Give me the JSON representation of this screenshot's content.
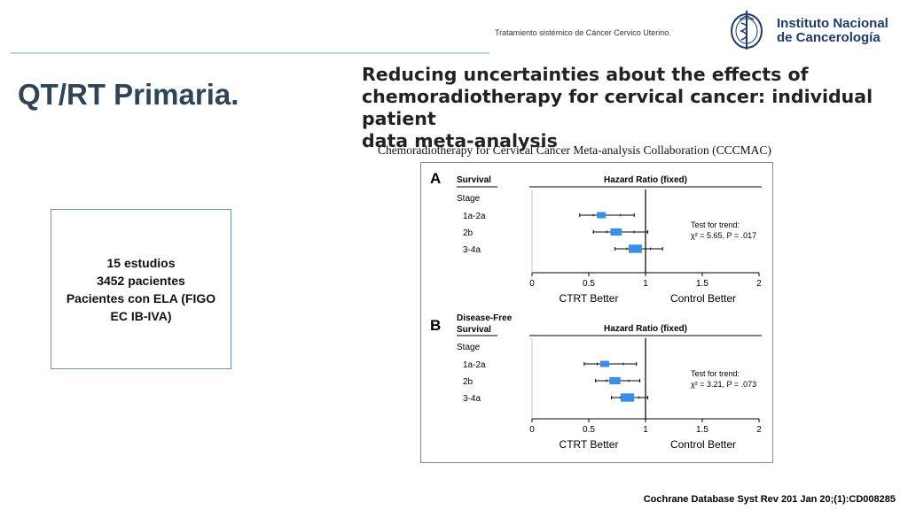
{
  "header": {
    "subtitle": "Tratamiento sistémico  de Cáncer Cervico Uterino.",
    "logo_line1": "Instituto Nacional",
    "logo_line2": "de Cancerología"
  },
  "slide_title": "QT/RT Primaria.",
  "info_box": {
    "line1": "15 estudios",
    "line2": "3452 pacientes",
    "line3": "Pacientes con ELA (FIGO",
    "line4": "EC IB-IVA)"
  },
  "paper": {
    "title_line1": "Reducing uncertainties about the effects of",
    "title_line2": "chemoradiotherapy for cervical cancer: individual patient",
    "title_line3": "data meta-analysis",
    "collaboration": "Chemoradiotherapy for Cervical Cancer Meta-analysis Collaboration (CCCMAC)"
  },
  "footer": "Cochrane Database Syst Rev 201 Jan 20;(1):CD008285",
  "colors": {
    "marker": "#3a8ee6",
    "title": "#2e4557",
    "box_border": "#6b8fc0"
  },
  "chart_data": [
    {
      "type": "forest",
      "panel": "A",
      "outcome": "Survival",
      "column_header": "Hazard Ratio (fixed)",
      "row_group_label": "Stage",
      "categories": [
        "1a-2a",
        "2b",
        "3-4a"
      ],
      "hr": [
        0.61,
        0.74,
        0.91
      ],
      "ci_low": [
        0.42,
        0.54,
        0.73
      ],
      "ci_high": [
        0.9,
        1.02,
        1.15
      ],
      "xlim": [
        0,
        2
      ],
      "xticks": [
        "0",
        "0.5",
        "1",
        "1.5",
        "2"
      ],
      "xlabel_left": "CTRT Better",
      "xlabel_right": "Control Better",
      "annotation_line1": "Test for trend:",
      "annotation_line2": "χ² = 5.65, P = .017"
    },
    {
      "type": "forest",
      "panel": "B",
      "outcome_line1": "Disease-Free",
      "outcome_line2": "Survival",
      "column_header": "Hazard Ratio (fixed)",
      "row_group_label": "Stage",
      "categories": [
        "1a-2a",
        "2b",
        "3-4a"
      ],
      "hr": [
        0.64,
        0.73,
        0.84
      ],
      "ci_low": [
        0.46,
        0.56,
        0.7
      ],
      "ci_high": [
        0.92,
        0.95,
        1.02
      ],
      "xlim": [
        0,
        2
      ],
      "xticks": [
        "0",
        "0.5",
        "1",
        "1.5",
        "2"
      ],
      "xlabel_left": "CTRT Better",
      "xlabel_right": "Control Better",
      "annotation_line1": "Test for trend:",
      "annotation_line2": "χ² = 3.21, P = .073"
    }
  ]
}
